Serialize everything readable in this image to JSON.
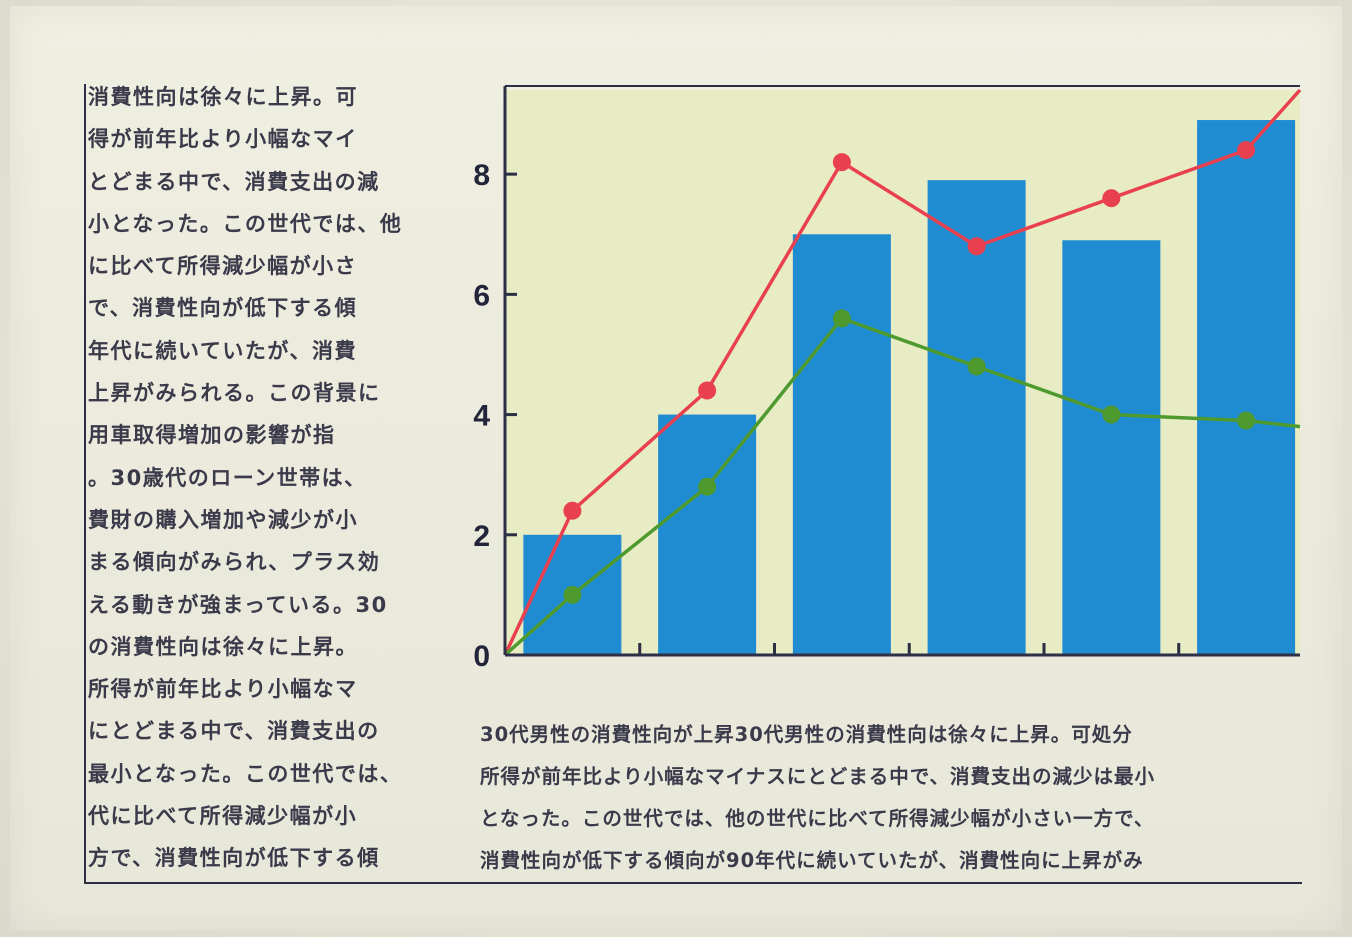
{
  "left_column_lines": [
    "消費性向は徐々に上昇。可",
    "得が前年比より小幅なマイ",
    "とどまる中で、消費支出の減",
    "小となった。この世代では、他",
    "に比べて所得減少幅が小さ",
    "で、消費性向が低下する傾",
    "年代に続いていたが、消費",
    "上昇がみられる。この背景に",
    "用車取得増加の影響が指",
    "。30歳代のローン世帯は、",
    "費財の購入増加や減少が小",
    "まる傾向がみられ、プラス効",
    "える動きが強まっている。30",
    "の消費性向は徐々に上昇。",
    "所得が前年比より小幅なマ",
    "にとどまる中で、消費支出の",
    "最小となった。この世代では、",
    "代に比べて所得減少幅が小",
    "方で、消費性向が低下する傾"
  ],
  "bottom_text_lines": [
    "30代男性の消費性向が上昇30代男性の消費性向は徐々に上昇。可処分",
    "所得が前年比より小幅なマイナスにとどまる中で、消費支出の減少は最小",
    "となった。この世代では、他の世代に比べて所得減少幅が小さい一方で、",
    "消費性向が低下する傾向が90年代に続いていたが、消費性向に上昇がみ"
  ],
  "colors": {
    "bar": "#1f8bd0",
    "line_red": "#e8404f",
    "line_green": "#4e9a2f",
    "axis": "#2c2f45"
  },
  "chart_data": {
    "type": "bar",
    "x": [
      0,
      1,
      2,
      3,
      4,
      5,
      6
    ],
    "categories": [
      "",
      "",
      "",
      "",
      "",
      ""
    ],
    "ylim": [
      0,
      9.4
    ],
    "yticks": [
      0,
      2,
      4,
      6,
      8
    ],
    "ytick_labels": [
      "0",
      "2",
      "4",
      "6",
      "8"
    ],
    "title": "",
    "xlabel": "",
    "ylabel": "",
    "legend": "none",
    "grid": false,
    "series": [
      {
        "type": "bar",
        "color": "#1f8bd0",
        "values": [
          2.0,
          4.0,
          7.0,
          7.9,
          6.9,
          8.9
        ]
      },
      {
        "type": "line",
        "color": "#e8404f",
        "x": [
          0,
          0.5,
          1.5,
          2.5,
          3.5,
          4.5,
          5.5,
          5.9
        ],
        "values": [
          0,
          2.4,
          4.4,
          8.2,
          6.8,
          7.6,
          8.4,
          9.4
        ]
      },
      {
        "type": "line",
        "color": "#4e9a2f",
        "x": [
          0,
          0.5,
          1.5,
          2.5,
          3.5,
          4.5,
          5.5,
          5.9
        ],
        "values": [
          0,
          1.0,
          2.8,
          5.6,
          4.8,
          4.0,
          3.9,
          3.8
        ]
      }
    ]
  }
}
